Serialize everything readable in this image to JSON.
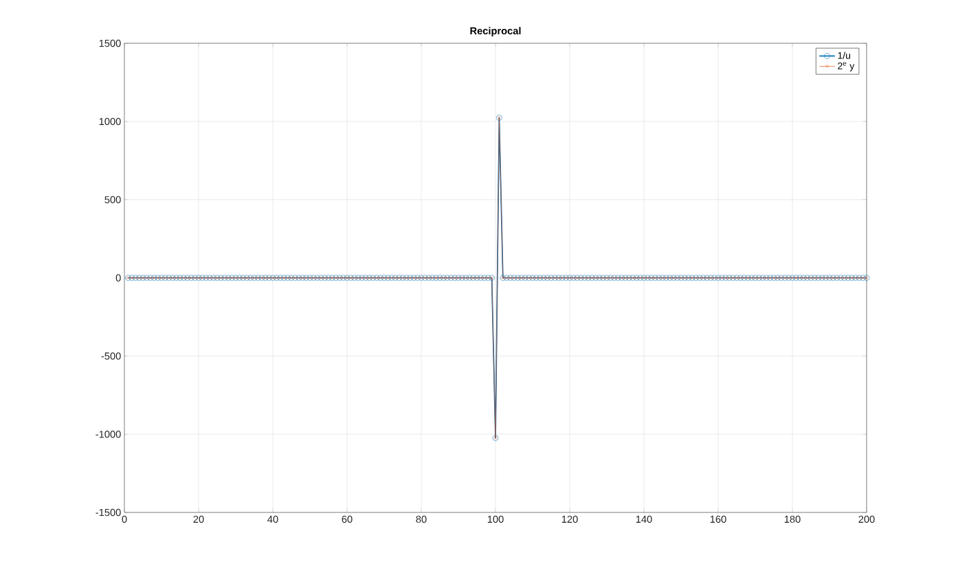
{
  "chart_data": {
    "type": "line",
    "title": "Reciprocal",
    "x": [
      1,
      2,
      3,
      4,
      5,
      6,
      7,
      8,
      9,
      10,
      11,
      12,
      13,
      14,
      15,
      16,
      17,
      18,
      19,
      20,
      21,
      22,
      23,
      24,
      25,
      26,
      27,
      28,
      29,
      30,
      31,
      32,
      33,
      34,
      35,
      36,
      37,
      38,
      39,
      40,
      41,
      42,
      43,
      44,
      45,
      46,
      47,
      48,
      49,
      50,
      51,
      52,
      53,
      54,
      55,
      56,
      57,
      58,
      59,
      60,
      61,
      62,
      63,
      64,
      65,
      66,
      67,
      68,
      69,
      70,
      71,
      72,
      73,
      74,
      75,
      76,
      77,
      78,
      79,
      80,
      81,
      82,
      83,
      84,
      85,
      86,
      87,
      88,
      89,
      90,
      91,
      92,
      93,
      94,
      95,
      96,
      97,
      98,
      99,
      100,
      101,
      102,
      103,
      104,
      105,
      106,
      107,
      108,
      109,
      110,
      111,
      112,
      113,
      114,
      115,
      116,
      117,
      118,
      119,
      120,
      121,
      122,
      123,
      124,
      125,
      126,
      127,
      128,
      129,
      130,
      131,
      132,
      133,
      134,
      135,
      136,
      137,
      138,
      139,
      140,
      141,
      142,
      143,
      144,
      145,
      146,
      147,
      148,
      149,
      150,
      151,
      152,
      153,
      154,
      155,
      156,
      157,
      158,
      159,
      160,
      161,
      162,
      163,
      164,
      165,
      166,
      167,
      168,
      169,
      170,
      171,
      172,
      173,
      174,
      175,
      176,
      177,
      178,
      179,
      180,
      181,
      182,
      183,
      184,
      185,
      186,
      187,
      188,
      189,
      190,
      191,
      192,
      193,
      194,
      195,
      196,
      197,
      198,
      199,
      200
    ],
    "series": [
      {
        "name": "1/u",
        "color": "#0072bd",
        "marker": "circle",
        "values": [
          0,
          0,
          0,
          0,
          0,
          0,
          0,
          0,
          0,
          0,
          0,
          0,
          0,
          0,
          0,
          0,
          0,
          0,
          0,
          0,
          0,
          0,
          0,
          0,
          0,
          0,
          0,
          0,
          0,
          0,
          0,
          0,
          0,
          0,
          0,
          0,
          0,
          0,
          0,
          0,
          0,
          0,
          0,
          0,
          0,
          0,
          0,
          0,
          0,
          0,
          0,
          0,
          0,
          0,
          0,
          0,
          0,
          0,
          0,
          0,
          0,
          0,
          0,
          0,
          0,
          0,
          0,
          0,
          0,
          0,
          0,
          0,
          0,
          0,
          0,
          0,
          0,
          0,
          0,
          0,
          0,
          0,
          0,
          0,
          0,
          0,
          0,
          0,
          0,
          0,
          0,
          0,
          0,
          0,
          0,
          0,
          0,
          0,
          0,
          -1024,
          1024,
          0,
          0,
          0,
          0,
          0,
          0,
          0,
          0,
          0,
          0,
          0,
          0,
          0,
          0,
          0,
          0,
          0,
          0,
          0,
          0,
          0,
          0,
          0,
          0,
          0,
          0,
          0,
          0,
          0,
          0,
          0,
          0,
          0,
          0,
          0,
          0,
          0,
          0,
          0,
          0,
          0,
          0,
          0,
          0,
          0,
          0,
          0,
          0,
          0,
          0,
          0,
          0,
          0,
          0,
          0,
          0,
          0,
          0,
          0,
          0,
          0,
          0,
          0,
          0,
          0,
          0,
          0,
          0,
          0,
          0,
          0,
          0,
          0,
          0,
          0,
          0,
          0,
          0,
          0,
          0,
          0,
          0,
          0,
          0,
          0,
          0,
          0,
          0,
          0,
          0,
          0,
          0,
          0,
          0,
          0,
          0,
          0,
          0,
          0
        ]
      },
      {
        "name": "2$^{e}$ y",
        "color": "#d95319",
        "marker": "cross",
        "values": [
          0,
          0,
          0,
          0,
          0,
          0,
          0,
          0,
          0,
          0,
          0,
          0,
          0,
          0,
          0,
          0,
          0,
          0,
          0,
          0,
          0,
          0,
          0,
          0,
          0,
          0,
          0,
          0,
          0,
          0,
          0,
          0,
          0,
          0,
          0,
          0,
          0,
          0,
          0,
          0,
          0,
          0,
          0,
          0,
          0,
          0,
          0,
          0,
          0,
          0,
          0,
          0,
          0,
          0,
          0,
          0,
          0,
          0,
          0,
          0,
          0,
          0,
          0,
          0,
          0,
          0,
          0,
          0,
          0,
          0,
          0,
          0,
          0,
          0,
          0,
          0,
          0,
          0,
          0,
          0,
          0,
          0,
          0,
          0,
          0,
          0,
          0,
          0,
          0,
          0,
          0,
          0,
          0,
          0,
          0,
          0,
          0,
          0,
          0,
          -1024,
          1024,
          0,
          0,
          0,
          0,
          0,
          0,
          0,
          0,
          0,
          0,
          0,
          0,
          0,
          0,
          0,
          0,
          0,
          0,
          0,
          0,
          0,
          0,
          0,
          0,
          0,
          0,
          0,
          0,
          0,
          0,
          0,
          0,
          0,
          0,
          0,
          0,
          0,
          0,
          0,
          0,
          0,
          0,
          0,
          0,
          0,
          0,
          0,
          0,
          0,
          0,
          0,
          0,
          0,
          0,
          0,
          0,
          0,
          0,
          0,
          0,
          0,
          0,
          0,
          0,
          0,
          0,
          0,
          0,
          0,
          0,
          0,
          0,
          0,
          0,
          0,
          0,
          0,
          0,
          0,
          0,
          0,
          0,
          0,
          0,
          0,
          0,
          0,
          0,
          0,
          0,
          0,
          0,
          0,
          0,
          0,
          0,
          0,
          0,
          0
        ]
      }
    ],
    "xlim": [
      0,
      200
    ],
    "ylim": [
      -1500,
      1500
    ],
    "xticks": [
      0,
      20,
      40,
      60,
      80,
      100,
      120,
      140,
      160,
      180,
      200
    ],
    "yticks": [
      -1500,
      -1000,
      -500,
      0,
      500,
      1000,
      1500
    ],
    "grid": true,
    "legend": "top right",
    "line_style": "solid"
  }
}
